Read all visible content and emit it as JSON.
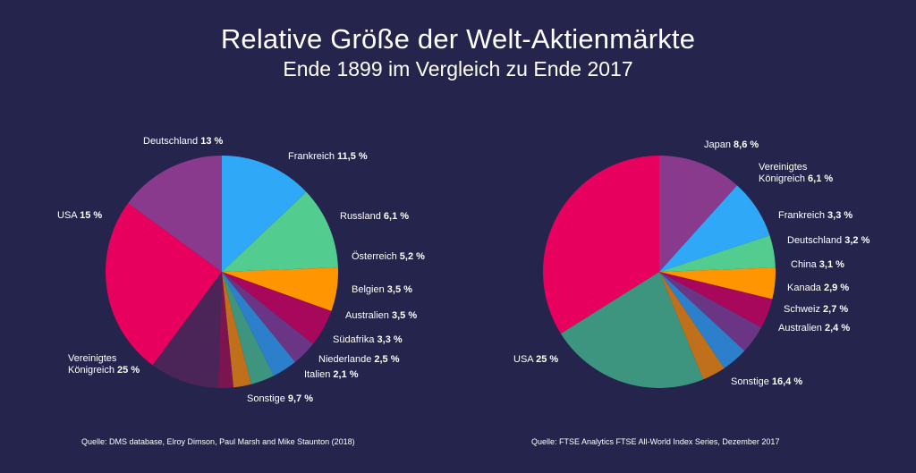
{
  "title": "Relative Größe der Welt-Aktienmärkte",
  "subtitle": "Ende 1899 im Vergleich zu Ende 2017",
  "chart_data": [
    {
      "type": "pie",
      "title": "",
      "slices": [
        {
          "label": "Deutschland",
          "value_text": "13 %",
          "value": 13,
          "color": "#2fa8f7"
        },
        {
          "label": "Frankreich",
          "value_text": "11,5 %",
          "value": 11.5,
          "color": "#52cc8f"
        },
        {
          "label": "Russland",
          "value_text": "6,1 %",
          "value": 6.1,
          "color": "#ff9500"
        },
        {
          "label": "Österreich",
          "value_text": "5,2 %",
          "value": 5.2,
          "color": "#a8085c"
        },
        {
          "label": "Belgien",
          "value_text": "3,5 %",
          "value": 3.5,
          "color": "#6b3585"
        },
        {
          "label": "Australien",
          "value_text": "3,5 %",
          "value": 3.5,
          "color": "#2b7fcb"
        },
        {
          "label": "Südafrika",
          "value_text": "3,3 %",
          "value": 3.3,
          "color": "#3d9580"
        },
        {
          "label": "Niederlande",
          "value_text": "2,5 %",
          "value": 2.5,
          "color": "#c0701a"
        },
        {
          "label": "Italien",
          "value_text": "2,1 %",
          "value": 2.1,
          "color": "#7c1450"
        },
        {
          "label": "Sonstige",
          "value_text": "9,7 %",
          "value": 9.7,
          "color": "#4b2558"
        },
        {
          "label": "Vereinigtes Königreich",
          "label_lines": [
            "Vereinigtes",
            "Königreich"
          ],
          "value_text": "25 %",
          "value": 25,
          "color": "#e8005e"
        },
        {
          "label": "USA",
          "value_text": "15 %",
          "value": 15,
          "color": "#8a3a8c"
        }
      ],
      "source": "Quelle: DMS database, Elroy Dimson, Paul Marsh and Mike Staunton (2018)"
    },
    {
      "type": "pie",
      "title": "",
      "slices": [
        {
          "label": "Japan",
          "value_text": "8,6 %",
          "value": 8.6,
          "color": "#8a3a8c"
        },
        {
          "label": "Vereinigtes Königreich",
          "label_lines": [
            "Vereinigtes",
            "Königreich"
          ],
          "value_text": "6,1 %",
          "value": 6.1,
          "color": "#2fa8f7"
        },
        {
          "label": "Frankreich",
          "value_text": "3,3 %",
          "value": 3.3,
          "color": "#52cc8f"
        },
        {
          "label": "Deutschland",
          "value_text": "3,2 %",
          "value": 3.2,
          "color": "#ff9500"
        },
        {
          "label": "China",
          "value_text": "3,1 %",
          "value": 3.1,
          "color": "#a8085c"
        },
        {
          "label": "Kanada",
          "value_text": "2,9 %",
          "value": 2.9,
          "color": "#6b3585"
        },
        {
          "label": "Schweiz",
          "value_text": "2,7 %",
          "value": 2.7,
          "color": "#2b7fcb"
        },
        {
          "label": "Australien",
          "value_text": "2,4 %",
          "value": 2.4,
          "color": "#c0701a"
        },
        {
          "label": "Sonstige",
          "value_text": "16,4 %",
          "value": 16.4,
          "color": "#3d9580"
        },
        {
          "label": "USA",
          "value_text": "25 %",
          "value": 25,
          "color": "#e8005e"
        }
      ],
      "source": "Quelle: FTSE Analytics FTSE All-World Index Series, Dezember 2017"
    }
  ]
}
